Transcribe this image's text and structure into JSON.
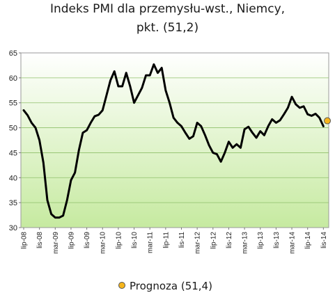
{
  "chart_data": {
    "type": "line",
    "title_line1": "Indeks PMI dla przemysłu-wst., Niemcy,",
    "title_line2": "pkt. (51,2)",
    "xlabel": "",
    "ylabel": "",
    "ylim": [
      30,
      65
    ],
    "yticks": [
      30,
      35,
      40,
      45,
      50,
      55,
      60,
      65
    ],
    "x_tick_labels": [
      "lip-08",
      "lis-08",
      "mar-09",
      "lip-09",
      "lis-09",
      "mar-10",
      "lip-10",
      "lis-10",
      "mar-11",
      "lip-11",
      "lis-11",
      "mar-12",
      "lip-12",
      "lis-12",
      "mar-13",
      "lip-13",
      "lis-13",
      "mar-14",
      "lip-14",
      "lis-14"
    ],
    "x_tick_every": 4,
    "grid": true,
    "series": [
      {
        "values": [
          53.5,
          52.5,
          51.0,
          50.0,
          47.5,
          43.0,
          35.5,
          32.7,
          32.0,
          32.0,
          32.4,
          35.5,
          39.5,
          41.0,
          45.5,
          49.0,
          49.5,
          51.0,
          52.3,
          52.6,
          53.5,
          56.5,
          59.5,
          61.3,
          58.3,
          58.3,
          61.0,
          58.3,
          55.0,
          56.5,
          58.0,
          60.5,
          60.5,
          62.7,
          61.0,
          62.0,
          57.5,
          55.0,
          52.0,
          51.0,
          50.3,
          49.0,
          47.8,
          48.3,
          51.0,
          50.3,
          48.5,
          46.5,
          45.0,
          44.7,
          43.2,
          45.0,
          47.2,
          46.0,
          46.7,
          46.0,
          49.7,
          50.2,
          49.0,
          48.0,
          49.3,
          48.5,
          50.3,
          51.7,
          51.0,
          51.5,
          52.7,
          54.0,
          56.2,
          54.7,
          54.0,
          54.3,
          52.7,
          52.4,
          52.8,
          52.0,
          50.3
        ]
      }
    ],
    "forecast": {
      "value": 51.4,
      "x_index": 77,
      "label": "Prognoza (51,4)"
    },
    "colors": {
      "line": "#000000",
      "plot_top": "#ffffff",
      "plot_bottom": "#c6eaa0",
      "grid": "#8fbf6a",
      "forecast_fill": "#f6b51c",
      "forecast_stroke": "#555555"
    }
  }
}
